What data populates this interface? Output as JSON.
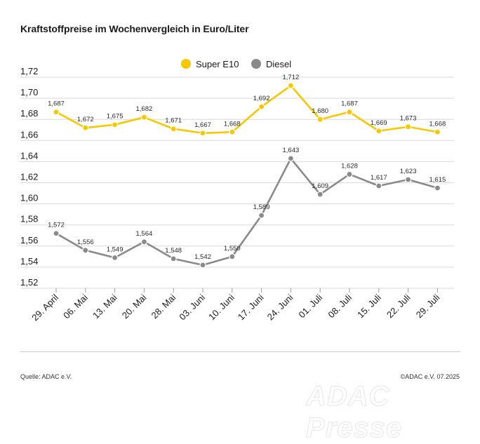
{
  "title": "Kraftstoffpreise im Wochenvergleich in Euro/Liter",
  "source": "Quelle: ADAC e.V.",
  "copyright": "©ADAC e.V. 07.2025",
  "watermark": "ADAC Presse",
  "colors": {
    "super_e10": "#f5c800",
    "diesel": "#8a8a8a",
    "grid": "#d9d9d9",
    "axis": "#333333"
  },
  "chart_data": {
    "type": "line",
    "title": "Kraftstoffpreise im Wochenvergleich in Euro/Liter",
    "categories": [
      "29. April",
      "06. Mai",
      "13. Mai",
      "20. Mai",
      "28. Mai",
      "03. Juni",
      "10. Juni",
      "17. Juni",
      "24. Juni",
      "01. Juli",
      "08. Juli",
      "15. Juli",
      "22. Juli",
      "29. Juli"
    ],
    "series": [
      {
        "name": "Super E10",
        "values": [
          1.687,
          1.672,
          1.675,
          1.682,
          1.671,
          1.667,
          1.668,
          1.692,
          1.712,
          1.68,
          1.687,
          1.669,
          1.673,
          1.668
        ],
        "labels": [
          "1,687",
          "1,672",
          "1,675",
          "1,682",
          "1,671",
          "1,667",
          "1,668",
          "1,692",
          "1,712",
          "1,680",
          "1,687",
          "1,669",
          "1,673",
          "1,668"
        ]
      },
      {
        "name": "Diesel",
        "values": [
          1.572,
          1.556,
          1.549,
          1.564,
          1.548,
          1.542,
          1.55,
          1.589,
          1.643,
          1.609,
          1.628,
          1.617,
          1.623,
          1.615
        ],
        "labels": [
          "1,572",
          "1,556",
          "1,549",
          "1,564",
          "1,548",
          "1,542",
          "1,550",
          "1,589",
          "1,643",
          "1,609",
          "1,628",
          "1,617",
          "1,623",
          "1,615"
        ]
      }
    ],
    "yticks": [
      1.52,
      1.54,
      1.56,
      1.58,
      1.6,
      1.62,
      1.64,
      1.66,
      1.68,
      1.7,
      1.72
    ],
    "ytick_labels": [
      "1,52",
      "1,54",
      "1,56",
      "1,58",
      "1,60",
      "1,62",
      "1,64",
      "1,66",
      "1,68",
      "1,70",
      "1,72"
    ],
    "ylim": [
      1.52,
      1.72
    ],
    "xlabel": "",
    "ylabel": "",
    "grid": true,
    "legend": "top-center"
  }
}
